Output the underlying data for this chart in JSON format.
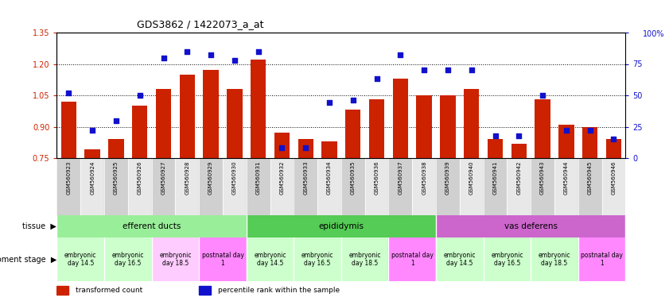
{
  "title": "GDS3862 / 1422073_a_at",
  "samples": [
    "GSM560923",
    "GSM560924",
    "GSM560925",
    "GSM560926",
    "GSM560927",
    "GSM560928",
    "GSM560929",
    "GSM560930",
    "GSM560931",
    "GSM560932",
    "GSM560933",
    "GSM560934",
    "GSM560935",
    "GSM560936",
    "GSM560937",
    "GSM560938",
    "GSM560939",
    "GSM560940",
    "GSM560941",
    "GSM560942",
    "GSM560943",
    "GSM560944",
    "GSM560945",
    "GSM560946"
  ],
  "bar_values": [
    1.02,
    0.79,
    0.84,
    1.0,
    1.08,
    1.15,
    1.17,
    1.08,
    1.22,
    0.87,
    0.84,
    0.83,
    0.98,
    1.03,
    1.13,
    1.05,
    1.05,
    1.08,
    0.84,
    0.82,
    1.03,
    0.91,
    0.9,
    0.84
  ],
  "percentile_values": [
    52,
    22,
    30,
    50,
    80,
    85,
    82,
    78,
    85,
    8,
    8,
    44,
    46,
    63,
    82,
    70,
    70,
    70,
    18,
    18,
    50,
    22,
    22,
    15
  ],
  "ylim_left": [
    0.75,
    1.35
  ],
  "ylim_right": [
    0,
    100
  ],
  "bar_color": "#cc2200",
  "dot_color": "#1111cc",
  "bar_width": 0.65,
  "xtick_bg_colors": [
    "#d0d0d0",
    "#e8e8e8",
    "#d0d0d0",
    "#e8e8e8",
    "#d0d0d0",
    "#e8e8e8",
    "#d0d0d0",
    "#e8e8e8",
    "#d0d0d0",
    "#e8e8e8",
    "#d0d0d0",
    "#e8e8e8",
    "#d0d0d0",
    "#e8e8e8",
    "#d0d0d0",
    "#e8e8e8",
    "#d0d0d0",
    "#e8e8e8",
    "#d0d0d0",
    "#e8e8e8",
    "#d0d0d0",
    "#e8e8e8",
    "#d0d0d0",
    "#e8e8e8"
  ],
  "tissues": [
    {
      "label": "efferent ducts",
      "start": 0,
      "end": 7,
      "color": "#99ee99"
    },
    {
      "label": "epididymis",
      "start": 8,
      "end": 15,
      "color": "#55cc55"
    },
    {
      "label": "vas deferens",
      "start": 16,
      "end": 23,
      "color": "#cc66cc"
    }
  ],
  "dev_stages": [
    {
      "label": "embryonic\nday 14.5",
      "start": 0,
      "end": 1,
      "color": "#ccffcc"
    },
    {
      "label": "embryonic\nday 16.5",
      "start": 2,
      "end": 3,
      "color": "#ccffcc"
    },
    {
      "label": "embryonic\nday 18.5",
      "start": 4,
      "end": 5,
      "color": "#ffccff"
    },
    {
      "label": "postnatal day\n1",
      "start": 6,
      "end": 7,
      "color": "#ff88ff"
    },
    {
      "label": "embryonic\nday 14.5",
      "start": 8,
      "end": 9,
      "color": "#ccffcc"
    },
    {
      "label": "embryonic\nday 16.5",
      "start": 10,
      "end": 11,
      "color": "#ccffcc"
    },
    {
      "label": "embryonic\nday 18.5",
      "start": 12,
      "end": 13,
      "color": "#ccffcc"
    },
    {
      "label": "postnatal day\n1",
      "start": 14,
      "end": 15,
      "color": "#ff88ff"
    },
    {
      "label": "embryonic\nday 14.5",
      "start": 16,
      "end": 17,
      "color": "#ccffcc"
    },
    {
      "label": "embryonic\nday 16.5",
      "start": 18,
      "end": 19,
      "color": "#ccffcc"
    },
    {
      "label": "embryonic\nday 18.5",
      "start": 20,
      "end": 21,
      "color": "#ccffcc"
    },
    {
      "label": "postnatal day\n1",
      "start": 22,
      "end": 23,
      "color": "#ff88ff"
    }
  ],
  "grid_values": [
    0.9,
    1.05,
    1.2
  ],
  "yticks_left": [
    0.75,
    0.9,
    1.05,
    1.2,
    1.35
  ],
  "yticks_right": [
    0,
    25,
    50,
    75,
    100
  ],
  "legend_items": [
    {
      "label": "transformed count",
      "color": "#cc2200"
    },
    {
      "label": "percentile rank within the sample",
      "color": "#1111cc"
    }
  ]
}
